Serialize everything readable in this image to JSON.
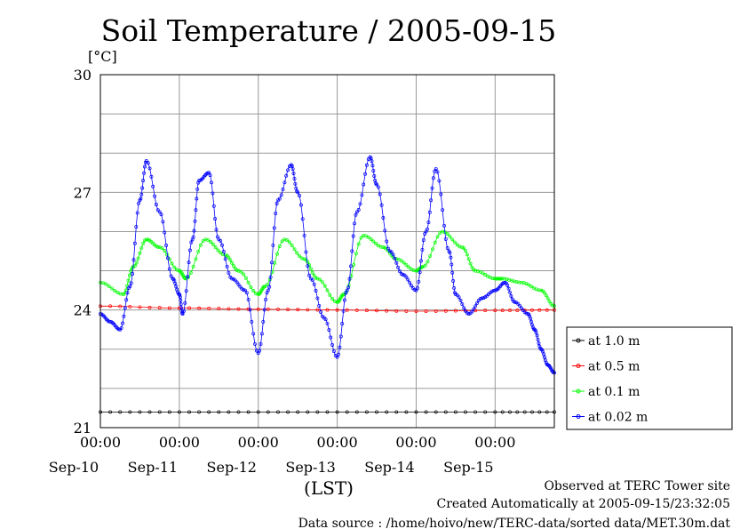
{
  "chart_data": {
    "type": "line",
    "title": "Soil Temperature / 2005-09-15",
    "ylabel": "[°C]",
    "xlabel": "(LST)",
    "ylim": [
      21,
      30
    ],
    "yticks": [
      "21",
      "24",
      "27",
      "30"
    ],
    "y_grid": [
      21,
      22,
      23,
      24,
      25,
      26,
      27,
      28,
      29,
      30
    ],
    "xlim": [
      0,
      138
    ],
    "x_grid": [
      0,
      24,
      48,
      72,
      96,
      120
    ],
    "x_ticks": [
      {
        "hour": 24,
        "time": "00:00",
        "date": "Sep-10"
      },
      {
        "hour": 48,
        "time": "00:00",
        "date": "Sep-11"
      },
      {
        "hour": 72,
        "time": "00:00",
        "date": "Sep-12"
      },
      {
        "hour": 96,
        "time": "00:00",
        "date": "Sep-13"
      },
      {
        "hour": 120,
        "time": "00:00",
        "date": "Sep-14"
      },
      {
        "hour": 144,
        "time": "00:00",
        "date": "Sep-15"
      }
    ],
    "x_units": "hours",
    "legend_position": "right",
    "grid": true,
    "series": [
      {
        "name": "at 1.0 m",
        "color": "#000000",
        "x": [
          0,
          24,
          48,
          72,
          96,
          120,
          138
        ],
        "y": [
          21.4,
          21.4,
          21.4,
          21.4,
          21.4,
          21.4,
          21.4
        ]
      },
      {
        "name": "at 0.5 m",
        "color": "#ff0000",
        "x": [
          0,
          24,
          48,
          72,
          96,
          120,
          138
        ],
        "y": [
          24.1,
          24.05,
          24.02,
          24.0,
          23.97,
          23.99,
          24.0
        ]
      },
      {
        "name": "at 0.1 m",
        "color": "#00ff00",
        "x": [
          0,
          7,
          10,
          14,
          18,
          24,
          26,
          32,
          38,
          42,
          48,
          50,
          56,
          62,
          66,
          72,
          74,
          80,
          86,
          90,
          96,
          98,
          104,
          110,
          114,
          120,
          122,
          128,
          134,
          138
        ],
        "y": [
          24.7,
          24.4,
          25.1,
          25.8,
          25.6,
          25.0,
          24.8,
          25.8,
          25.4,
          25.0,
          24.4,
          24.6,
          25.8,
          25.3,
          24.8,
          24.2,
          24.4,
          25.9,
          25.6,
          25.3,
          25.0,
          25.1,
          26.0,
          25.6,
          25.0,
          24.8,
          24.8,
          24.7,
          24.5,
          24.1
        ]
      },
      {
        "name": "at 0.02 m",
        "color": "#0000ff",
        "x": [
          0,
          3,
          6,
          9,
          12,
          14,
          18,
          22,
          24,
          25,
          28,
          30,
          33,
          36,
          40,
          44,
          48,
          51,
          54,
          58,
          60,
          64,
          68,
          72,
          75,
          78,
          82,
          84,
          88,
          92,
          96,
          99,
          102,
          106,
          108,
          112,
          116,
          120,
          123,
          126,
          130,
          132,
          134,
          136,
          138
        ],
        "y": [
          23.9,
          23.7,
          23.5,
          24.6,
          26.8,
          27.8,
          26.5,
          24.8,
          24.4,
          23.9,
          25.8,
          27.3,
          27.5,
          25.8,
          24.8,
          24.5,
          22.9,
          24.5,
          26.8,
          27.7,
          27.0,
          24.8,
          23.8,
          22.8,
          24.5,
          26.5,
          27.9,
          27.2,
          25.5,
          24.9,
          24.5,
          26.0,
          27.6,
          25.5,
          24.4,
          23.9,
          24.3,
          24.5,
          24.7,
          24.2,
          23.9,
          23.5,
          23.0,
          22.6,
          22.4
        ]
      }
    ]
  },
  "footer": {
    "site": "Observed at TERC Tower site",
    "created": "Created Automatically at 2005-09-15/23:32:05",
    "source": "Data source : /home/hoivo/new/TERC-data/sorted  data/MET.30m.dat"
  }
}
